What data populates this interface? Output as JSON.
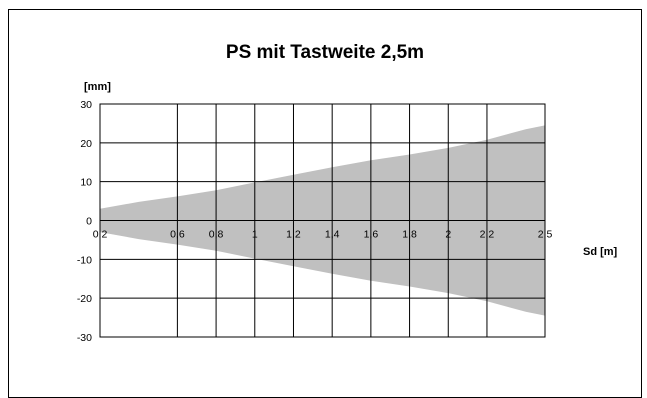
{
  "chart_data": {
    "type": "area",
    "title": "PS mit Tastweite 2,5m",
    "ylabel": "[mm]",
    "xlabel": "Sd [m]",
    "xlim": [
      0.2,
      2.5
    ],
    "ylim": [
      -30,
      30
    ],
    "x_ticks": [
      0.2,
      0.6,
      0.8,
      1,
      1.2,
      1.4,
      1.6,
      1.8,
      2,
      2.2,
      2.5
    ],
    "x_tick_labels": [
      "0,2",
      "0,6",
      "0,8",
      "1",
      "1,2",
      "1,4",
      "1,6",
      "1,8",
      "2",
      "2,2",
      "2,5"
    ],
    "y_ticks": [
      30,
      20,
      10,
      0,
      -10,
      -20,
      -30
    ],
    "y_tick_labels": [
      "30",
      "20",
      "10",
      "0",
      "-10",
      "-20",
      "-30"
    ],
    "grid": true,
    "fill_color": "#c0c0c0",
    "series": [
      {
        "x": [
          0.2,
          0.4,
          0.6,
          0.8,
          1.0,
          1.2,
          1.4,
          1.6,
          1.8,
          2.0,
          2.2,
          2.4,
          2.5
        ],
        "upper": [
          3,
          4.8,
          6.2,
          7.8,
          9.8,
          11.8,
          13.7,
          15.5,
          17.0,
          18.7,
          20.8,
          23.5,
          24.5
        ],
        "lower": [
          -3,
          -4.8,
          -6.2,
          -7.8,
          -9.8,
          -11.8,
          -13.7,
          -15.5,
          -17.0,
          -18.7,
          -20.8,
          -23.5,
          -24.5
        ]
      }
    ]
  }
}
